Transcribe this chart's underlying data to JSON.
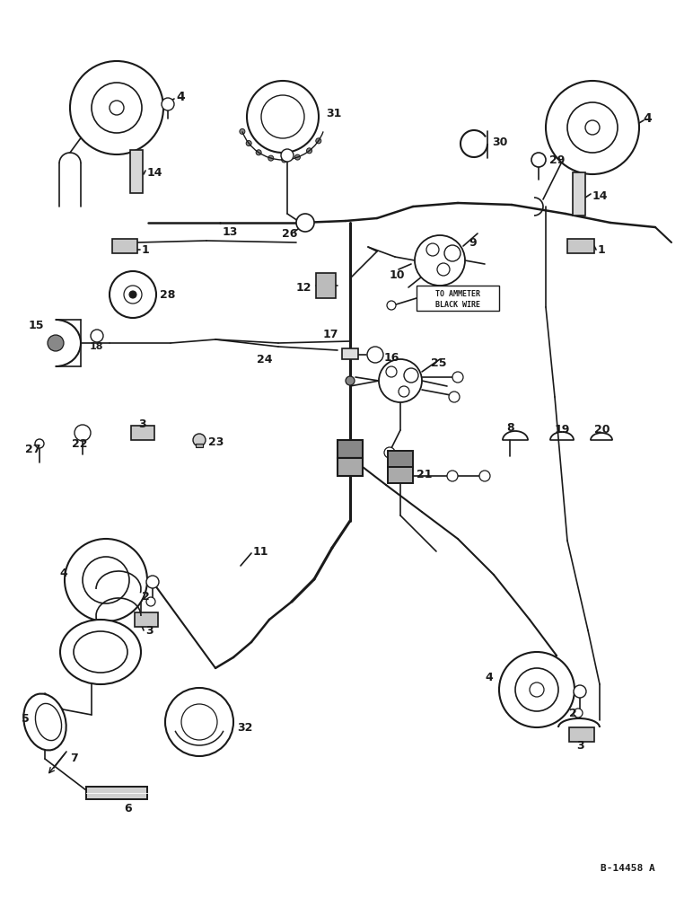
{
  "bg_color": "#ffffff",
  "lc": "#1a1a1a",
  "fig_width": 7.72,
  "fig_height": 10.0,
  "dpi": 100,
  "diagram_id": "B-14458 A"
}
